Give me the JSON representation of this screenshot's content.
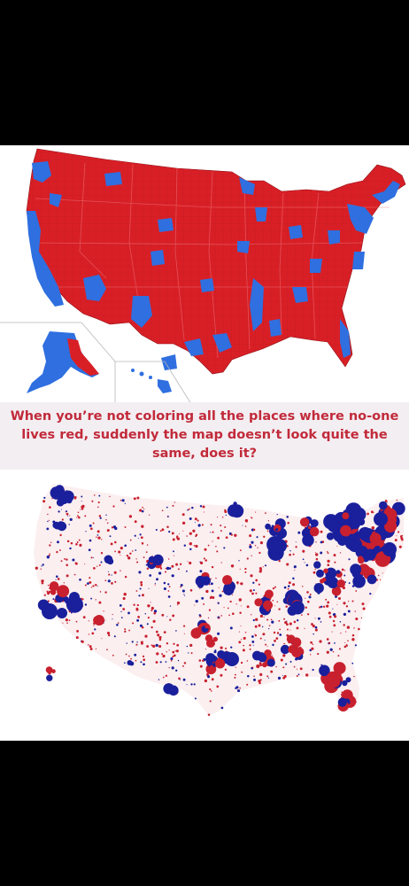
{
  "caption": "When you’re not coloring all the places where no-one lives red, suddenly the map doesn’t look quite the same, does it?",
  "colors": {
    "red": "#d91f26",
    "blue": "#2f6fe0",
    "bubble_red": "#c8202e",
    "bubble_blue": "#1a1f9c",
    "background_frame": "#000000",
    "panel": "#ffffff",
    "caption_band": "#f3eef2",
    "caption_text": "#c22a3a"
  },
  "top_map": {
    "kind": "county-level choropleth, red and blue",
    "insets": [
      "alaska",
      "hawaii"
    ]
  },
  "bottom_map": {
    "kind": "proportional circles, red and blue"
  }
}
